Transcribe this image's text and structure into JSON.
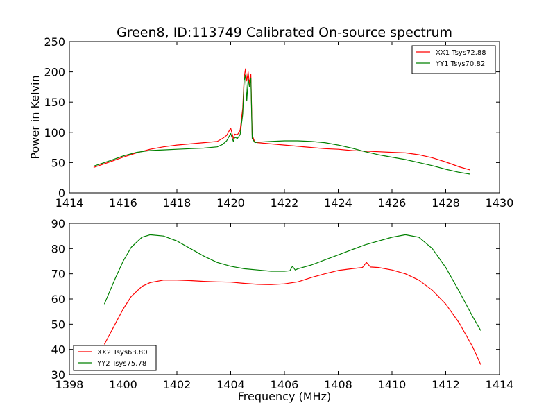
{
  "figure": {
    "title": "Green8, ID:113749 Calibrated On-source spectrum"
  },
  "chart_data": [
    {
      "type": "line",
      "title": "Green8, ID:113749 Calibrated On-source spectrum",
      "xlabel": "",
      "ylabel": "Power in Kelvin",
      "xlim": [
        1414,
        1430
      ],
      "ylim": [
        0,
        250
      ],
      "xticks": [
        "1414",
        "1416",
        "1418",
        "1420",
        "1422",
        "1424",
        "1426",
        "1428",
        "1430"
      ],
      "yticks": [
        "0",
        "50",
        "100",
        "150",
        "200",
        "250"
      ],
      "grid": false,
      "legend_position": "top-right",
      "series": [
        {
          "name": "XX1 Tsys72.88",
          "color": "#ff0000",
          "x": [
            1414.9,
            1415.5,
            1416.0,
            1416.5,
            1417.0,
            1417.5,
            1418.0,
            1418.5,
            1419.0,
            1419.5,
            1419.7,
            1419.85,
            1420.0,
            1420.1,
            1420.15,
            1420.25,
            1420.35,
            1420.45,
            1420.5,
            1420.55,
            1420.6,
            1420.65,
            1420.7,
            1420.75,
            1420.8,
            1420.9,
            1421.0,
            1421.5,
            1422.0,
            1422.5,
            1423.0,
            1423.5,
            1424.0,
            1424.5,
            1425.0,
            1425.5,
            1426.0,
            1426.5,
            1427.0,
            1427.5,
            1428.0,
            1428.5,
            1428.9
          ],
          "values": [
            42,
            51,
            59,
            66,
            72,
            76,
            79,
            81,
            83,
            85,
            90,
            95,
            107,
            90,
            97,
            96,
            103,
            140,
            190,
            205,
            185,
            200,
            180,
            196,
            95,
            84,
            83,
            81,
            79,
            77,
            75,
            73,
            72,
            70,
            69,
            68,
            67,
            66,
            63,
            58,
            51,
            43,
            38
          ]
        },
        {
          "name": "YY1 Tsys70.82",
          "color": "#008000",
          "x": [
            1414.9,
            1415.5,
            1416.0,
            1416.5,
            1417.0,
            1417.5,
            1418.0,
            1418.5,
            1419.0,
            1419.5,
            1419.7,
            1419.85,
            1420.0,
            1420.1,
            1420.15,
            1420.25,
            1420.35,
            1420.45,
            1420.5,
            1420.55,
            1420.6,
            1420.65,
            1420.7,
            1420.75,
            1420.8,
            1420.9,
            1421.0,
            1421.5,
            1422.0,
            1422.5,
            1423.0,
            1423.5,
            1424.0,
            1424.5,
            1425.0,
            1425.5,
            1426.0,
            1426.5,
            1427.0,
            1427.5,
            1428.0,
            1428.5,
            1428.9
          ],
          "values": [
            44,
            53,
            61,
            67,
            70,
            71,
            72,
            73,
            74,
            76,
            80,
            86,
            98,
            85,
            92,
            90,
            96,
            130,
            185,
            195,
            152,
            188,
            175,
            190,
            90,
            83,
            84,
            85,
            86,
            86,
            85,
            83,
            79,
            74,
            68,
            63,
            59,
            55,
            50,
            45,
            39,
            34,
            31
          ]
        }
      ]
    },
    {
      "type": "line",
      "title": "",
      "xlabel": "Frequency (MHz)",
      "ylabel": "",
      "xlim": [
        1398,
        1414
      ],
      "ylim": [
        30,
        90
      ],
      "xticks": [
        "1398",
        "1400",
        "1402",
        "1404",
        "1406",
        "1408",
        "1410",
        "1412",
        "1414"
      ],
      "yticks": [
        "30",
        "40",
        "50",
        "60",
        "70",
        "80",
        "90"
      ],
      "grid": false,
      "legend_position": "bottom-left",
      "series": [
        {
          "name": "XX2 Tsys63.80",
          "color": "#ff0000",
          "x": [
            1399.3,
            1399.7,
            1400.0,
            1400.3,
            1400.7,
            1401.0,
            1401.5,
            1402.0,
            1402.5,
            1403.0,
            1403.5,
            1404.0,
            1404.5,
            1405.0,
            1405.5,
            1406.0,
            1406.5,
            1407.0,
            1407.5,
            1408.0,
            1408.5,
            1408.9,
            1409.05,
            1409.2,
            1409.5,
            1410.0,
            1410.5,
            1411.0,
            1411.5,
            1412.0,
            1412.5,
            1413.0,
            1413.3
          ],
          "values": [
            42,
            50,
            56,
            61,
            65,
            66.5,
            67.5,
            67.5,
            67.3,
            67,
            66.8,
            66.7,
            66.2,
            65.8,
            65.7,
            66,
            66.8,
            68.5,
            70,
            71.3,
            72,
            72.5,
            74.5,
            72.7,
            72.5,
            71.5,
            70,
            67.5,
            63.5,
            58,
            50.5,
            41,
            34
          ]
        },
        {
          "name": "YY2 Tsys75.78",
          "color": "#008000",
          "x": [
            1399.3,
            1399.7,
            1400.0,
            1400.3,
            1400.7,
            1401.0,
            1401.5,
            1402.0,
            1402.5,
            1403.0,
            1403.5,
            1404.0,
            1404.5,
            1405.0,
            1405.5,
            1406.0,
            1406.2,
            1406.3,
            1406.4,
            1406.5,
            1407.0,
            1407.5,
            1408.0,
            1408.5,
            1409.0,
            1409.5,
            1410.0,
            1410.5,
            1411.0,
            1411.5,
            1412.0,
            1412.5,
            1413.0,
            1413.3
          ],
          "values": [
            58,
            68,
            75,
            80.5,
            84.5,
            85.5,
            85,
            83,
            80,
            77,
            74.5,
            73,
            72,
            71.5,
            71,
            71,
            71.2,
            73,
            71.5,
            72,
            73.5,
            75.5,
            77.5,
            79.5,
            81.5,
            83,
            84.5,
            85.5,
            84.5,
            80,
            72.5,
            63,
            53,
            47.5
          ]
        }
      ]
    }
  ]
}
